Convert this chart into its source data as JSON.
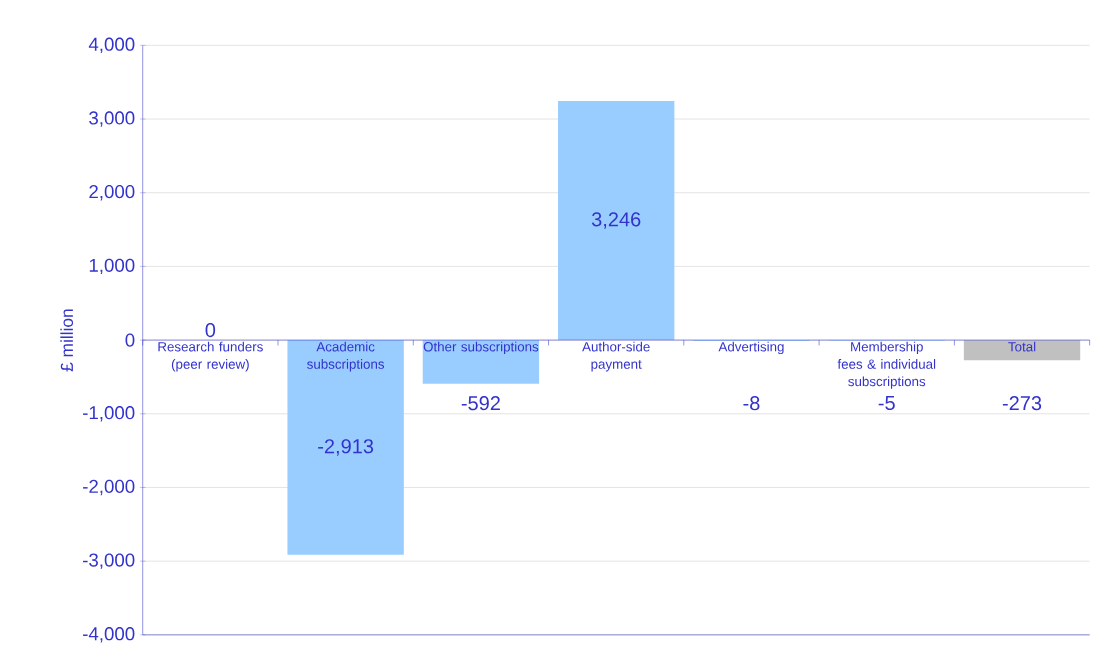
{
  "chart_data": {
    "type": "bar",
    "ylabel": "£ million",
    "categories": [
      "Research funders (peer review)",
      "Academic subscriptions",
      "Other subscriptions",
      "Author-side payment",
      "Advertising",
      "Membership fees & individual subscriptions",
      "Total"
    ],
    "values": [
      0,
      -2913,
      -592,
      3246,
      -8,
      -5,
      -273
    ],
    "colors": [
      "#99ccff",
      "#99ccff",
      "#99ccff",
      "#99ccff",
      "#99ccff",
      "#99ccff",
      "#c0c0c0"
    ],
    "value_labels": [
      "0",
      "-2,913",
      "-592",
      "3,246",
      "-8",
      "-5",
      "-273"
    ],
    "ylim": [
      -4000,
      4000
    ],
    "yticks": [
      {
        "value": -4000,
        "label": "-4,000"
      },
      {
        "value": -3000,
        "label": "-3,000"
      },
      {
        "value": -2000,
        "label": "-2,000"
      },
      {
        "value": -1000,
        "label": "-1,000"
      },
      0,
      {
        "value": 1000,
        "label": "1,000"
      },
      {
        "value": 2000,
        "label": "2,000"
      },
      {
        "value": 3000,
        "label": "3,000"
      },
      {
        "value": 4000,
        "label": "4,000"
      }
    ],
    "grid": "y"
  }
}
